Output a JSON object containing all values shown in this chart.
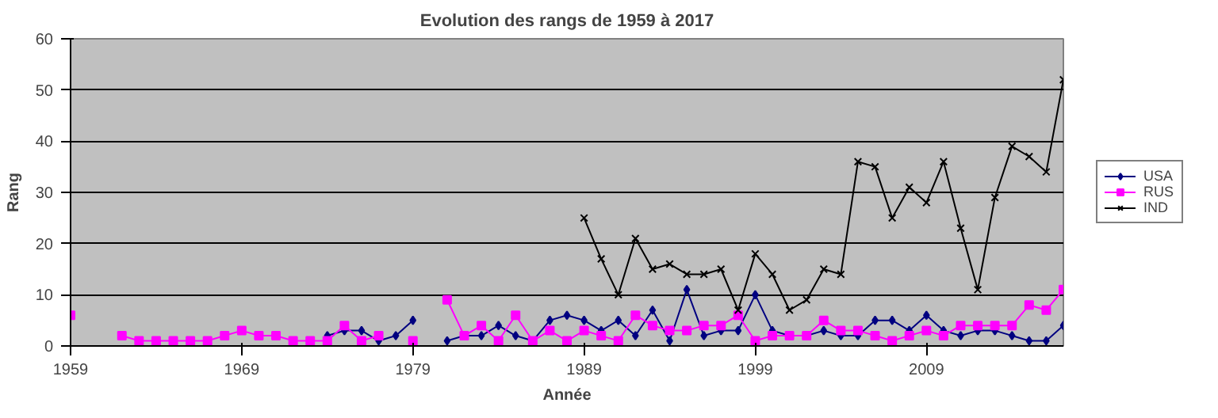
{
  "chart_data": {
    "type": "line",
    "title": "Evolution des rangs de 1959 à 2017",
    "xlabel": "Année",
    "ylabel": "Rang",
    "x": [
      1959,
      1960,
      1961,
      1962,
      1963,
      1964,
      1965,
      1966,
      1967,
      1968,
      1969,
      1970,
      1971,
      1972,
      1973,
      1974,
      1975,
      1976,
      1977,
      1978,
      1979,
      1980,
      1981,
      1982,
      1983,
      1984,
      1985,
      1986,
      1987,
      1988,
      1989,
      1990,
      1991,
      1992,
      1993,
      1994,
      1995,
      1996,
      1997,
      1998,
      1999,
      2000,
      2001,
      2002,
      2003,
      2004,
      2005,
      2006,
      2007,
      2008,
      2009,
      2010,
      2011,
      2012,
      2013,
      2014,
      2015,
      2016,
      2017
    ],
    "series": [
      {
        "name": "USA",
        "color": "#000080",
        "marker": "diamond",
        "values": [
          null,
          null,
          null,
          null,
          null,
          null,
          null,
          null,
          null,
          null,
          null,
          null,
          null,
          null,
          null,
          2,
          3,
          3,
          1,
          2,
          5,
          null,
          1,
          2,
          2,
          4,
          2,
          1,
          5,
          6,
          5,
          3,
          5,
          2,
          7,
          1,
          11,
          2,
          3,
          3,
          10,
          3,
          2,
          2,
          3,
          2,
          2,
          5,
          5,
          3,
          6,
          3,
          2,
          3,
          3,
          2,
          1,
          1,
          4
        ]
      },
      {
        "name": "RUS",
        "color": "#ff00ff",
        "marker": "square",
        "values": [
          6,
          null,
          null,
          2,
          1,
          1,
          1,
          1,
          1,
          2,
          3,
          2,
          2,
          1,
          1,
          1,
          4,
          1,
          2,
          null,
          1,
          null,
          9,
          2,
          4,
          1,
          6,
          1,
          3,
          1,
          3,
          2,
          1,
          6,
          4,
          3,
          3,
          4,
          4,
          6,
          1,
          2,
          2,
          2,
          5,
          3,
          3,
          2,
          1,
          2,
          3,
          2,
          4,
          4,
          4,
          4,
          8,
          7,
          11
        ]
      },
      {
        "name": "IND",
        "color": "#000000",
        "marker": "cross",
        "values": [
          null,
          null,
          null,
          null,
          null,
          null,
          null,
          null,
          null,
          null,
          null,
          null,
          null,
          null,
          null,
          null,
          null,
          null,
          null,
          null,
          null,
          null,
          null,
          null,
          null,
          null,
          null,
          null,
          null,
          null,
          25,
          17,
          10,
          21,
          15,
          16,
          14,
          14,
          15,
          7,
          18,
          14,
          7,
          9,
          15,
          14,
          36,
          35,
          25,
          31,
          28,
          36,
          23,
          11,
          29,
          39,
          37,
          34,
          52
        ]
      }
    ],
    "xlim": [
      1959,
      2017
    ],
    "xticks": [
      1959,
      1969,
      1979,
      1989,
      1999,
      2009
    ],
    "ylim": [
      0,
      60
    ],
    "yticks": [
      0,
      10,
      20,
      30,
      40,
      50,
      60
    ],
    "grid": "y",
    "legend": "right",
    "line_style": "solid"
  }
}
